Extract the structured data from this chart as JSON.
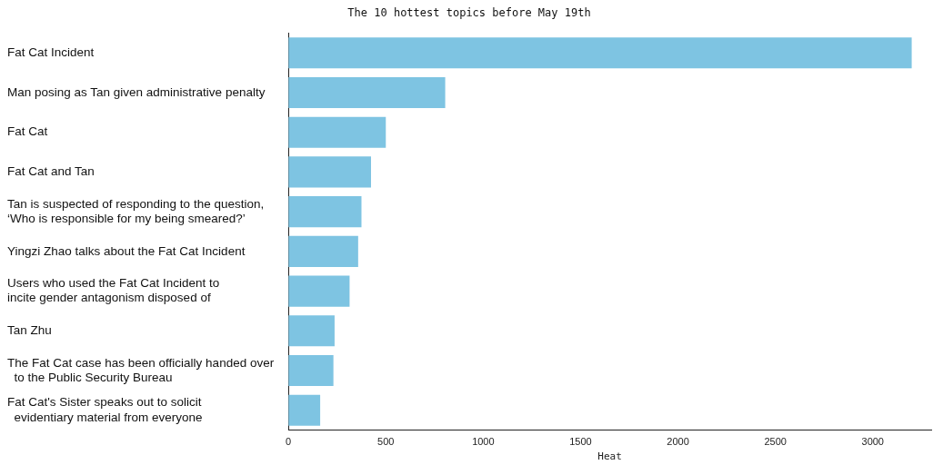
{
  "chart_data": {
    "type": "bar",
    "orientation": "horizontal",
    "title": "The 10 hottest topics before May 19th",
    "xlabel": "Heat",
    "categories": [
      "Fat Cat Incident",
      "Man posing as Tan given administrative penalty",
      "Fat Cat",
      "Fat Cat and Tan",
      "Tan is suspected of responding to the question,\n‘Who is responsible for my being smeared?’",
      "Yingzi Zhao talks about the Fat Cat Incident",
      "Users who used the Fat Cat Incident to\nincite gender antagonism disposed of",
      "Tan Zhu",
      "The Fat Cat case has been officially handed over\n  to the Public Security Bureau",
      "Fat Cat's Sister speaks out to solicit\n  evidentiary material from everyone"
    ],
    "values": [
      3200,
      805,
      500,
      424,
      375,
      358,
      314,
      237,
      231,
      163
    ],
    "color": "#7ec4e2",
    "xlim": [
      0,
      3300
    ],
    "xticks": [
      0,
      500,
      1000,
      1500,
      2000,
      2500,
      3000
    ],
    "grid": false,
    "legend": false
  }
}
